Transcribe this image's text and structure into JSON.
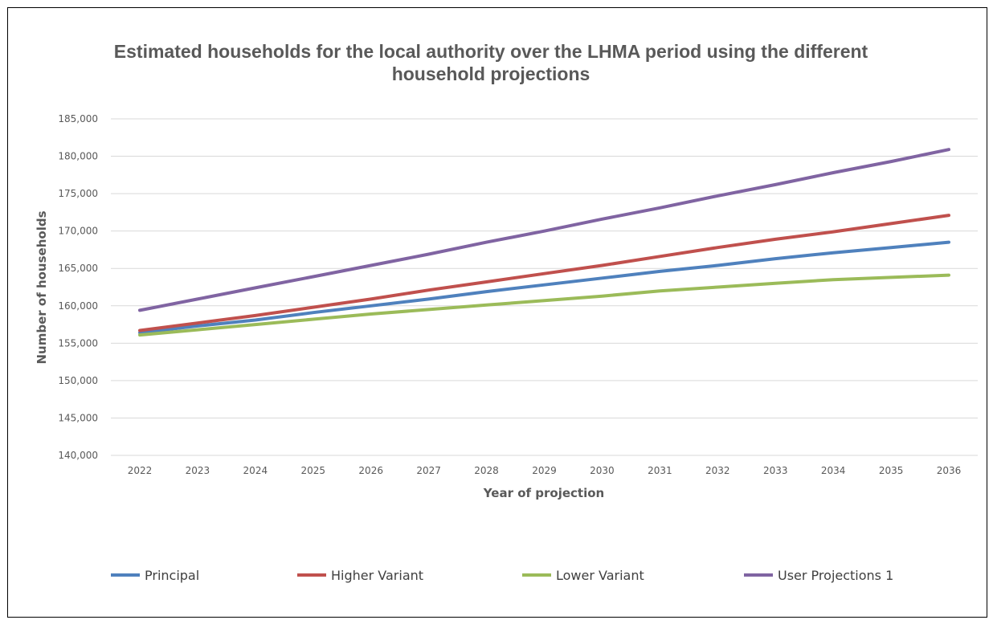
{
  "chart_data": {
    "type": "line",
    "title_lines": [
      "Estimated households for the local authority over the LHMA period using the different",
      "household projections"
    ],
    "xlabel": "Year of projection",
    "ylabel": "Number of households",
    "categories": [
      "2022",
      "2023",
      "2024",
      "2025",
      "2026",
      "2027",
      "2028",
      "2029",
      "2030",
      "2031",
      "2032",
      "2033",
      "2034",
      "2035",
      "2036"
    ],
    "ylim": [
      140000,
      185000
    ],
    "yticks": [
      140000,
      145000,
      150000,
      155000,
      160000,
      165000,
      170000,
      175000,
      180000,
      185000
    ],
    "ytick_labels": [
      "140,000",
      "145,000",
      "150,000",
      "155,000",
      "160,000",
      "165,000",
      "170,000",
      "175,000",
      "180,000",
      "185,000"
    ],
    "grid": true,
    "legend_position": "bottom",
    "series": [
      {
        "name": "Principal",
        "color": "#4f81bd",
        "values": [
          156400,
          157300,
          158100,
          159100,
          160000,
          160900,
          161900,
          162800,
          163700,
          164600,
          165400,
          166300,
          167100,
          167800,
          168500
        ]
      },
      {
        "name": "Higher Variant",
        "color": "#c0504d",
        "values": [
          156700,
          157700,
          158700,
          159800,
          160900,
          162100,
          163200,
          164300,
          165400,
          166600,
          167800,
          168900,
          169900,
          171000,
          172100
        ]
      },
      {
        "name": "Lower Variant",
        "color": "#9bbb59",
        "values": [
          156100,
          156800,
          157500,
          158200,
          158900,
          159500,
          160100,
          160700,
          161300,
          162000,
          162500,
          163000,
          163500,
          163800,
          164100
        ]
      },
      {
        "name": "User Projections 1",
        "color": "#8064a2",
        "values": [
          159400,
          160900,
          162400,
          163900,
          165400,
          166900,
          168500,
          170000,
          171600,
          173100,
          174700,
          176200,
          177800,
          179300,
          180900
        ]
      }
    ]
  }
}
